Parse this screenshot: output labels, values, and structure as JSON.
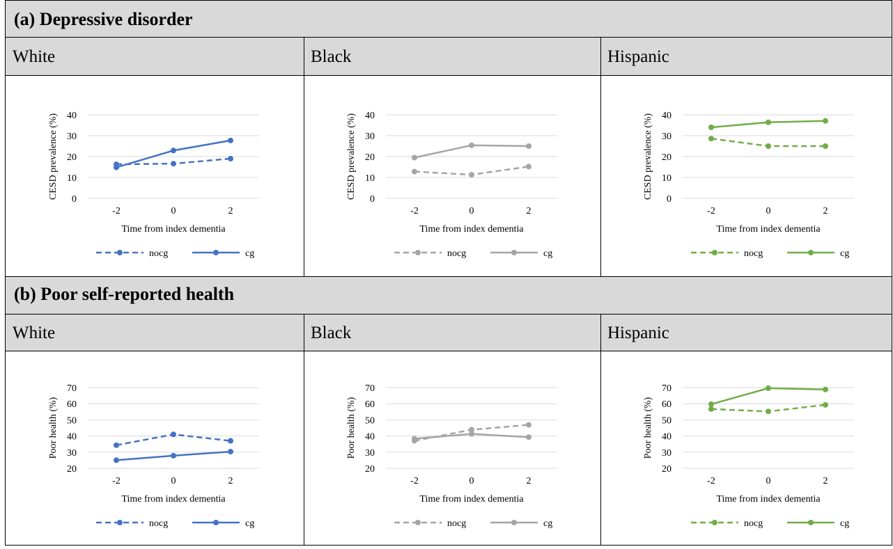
{
  "colors": {
    "White": "#4472c4",
    "Black": "#a5a5a5",
    "Hispanic": "#70ad47"
  },
  "sections": [
    {
      "title": "(a) Depressive disorder",
      "groups": [
        "White",
        "Black",
        "Hispanic"
      ]
    },
    {
      "title": "(b) Poor self-reported health",
      "groups": [
        "White",
        "Black",
        "Hispanic"
      ]
    }
  ],
  "chart_data": [
    {
      "type": "line",
      "section": "(a) Depressive disorder",
      "group": "White",
      "x": [
        -2,
        0,
        2
      ],
      "xlabel": "Time from index dementia",
      "ylabel": "CESD prevalence (%)",
      "ylim": [
        0,
        40
      ],
      "yticks": [
        0,
        10,
        20,
        30,
        40
      ],
      "xticks": [
        "-2",
        "0",
        "2"
      ],
      "grid": true,
      "legend": "bottom",
      "series": [
        {
          "name": "nocg",
          "style": "dashed",
          "values": [
            16.3,
            16.6,
            19.0
          ]
        },
        {
          "name": "cg",
          "style": "solid",
          "values": [
            14.8,
            22.9,
            27.7
          ]
        }
      ]
    },
    {
      "type": "line",
      "section": "(a) Depressive disorder",
      "group": "Black",
      "x": [
        -2,
        0,
        2
      ],
      "xlabel": "Time from index dementia",
      "ylabel": "CESD prevalence (%)",
      "ylim": [
        0,
        40
      ],
      "yticks": [
        0,
        10,
        20,
        30,
        40
      ],
      "xticks": [
        "-2",
        "0",
        "2"
      ],
      "grid": true,
      "legend": "bottom",
      "series": [
        {
          "name": "nocg",
          "style": "dashed",
          "values": [
            12.8,
            11.3,
            15.2
          ]
        },
        {
          "name": "cg",
          "style": "solid",
          "values": [
            19.5,
            25.4,
            25.0
          ]
        }
      ]
    },
    {
      "type": "line",
      "section": "(a) Depressive disorder",
      "group": "Hispanic",
      "x": [
        -2,
        0,
        2
      ],
      "xlabel": "Time from index dementia",
      "ylabel": "CESD prevalence (%)",
      "ylim": [
        0,
        40
      ],
      "yticks": [
        0,
        10,
        20,
        30,
        40
      ],
      "xticks": [
        "-2",
        "0",
        "2"
      ],
      "grid": true,
      "legend": "bottom",
      "series": [
        {
          "name": "nocg",
          "style": "dashed",
          "values": [
            28.6,
            25.0,
            25.0
          ]
        },
        {
          "name": "cg",
          "style": "solid",
          "values": [
            34.0,
            36.4,
            37.1
          ]
        }
      ]
    },
    {
      "type": "line",
      "section": "(b) Poor self-reported health",
      "group": "White",
      "x": [
        -2,
        0,
        2
      ],
      "xlabel": "Time from index dementia",
      "ylabel": "Poor health (%)",
      "ylim": [
        20,
        70
      ],
      "yticks": [
        20,
        30,
        40,
        50,
        60,
        70
      ],
      "xticks": [
        "-2",
        "0",
        "2"
      ],
      "grid": true,
      "legend": "bottom",
      "series": [
        {
          "name": "nocg",
          "style": "dashed",
          "values": [
            34.3,
            41.0,
            37.0
          ]
        },
        {
          "name": "cg",
          "style": "solid",
          "values": [
            25.0,
            27.8,
            30.3
          ]
        }
      ]
    },
    {
      "type": "line",
      "section": "(b) Poor self-reported health",
      "group": "Black",
      "x": [
        -2,
        0,
        2
      ],
      "xlabel": "Time from index dementia",
      "ylabel": "Poor health (%)",
      "ylim": [
        20,
        70
      ],
      "yticks": [
        20,
        30,
        40,
        50,
        60,
        70
      ],
      "xticks": [
        "-2",
        "0",
        "2"
      ],
      "grid": true,
      "legend": "bottom",
      "series": [
        {
          "name": "nocg",
          "style": "dashed",
          "values": [
            37.0,
            43.9,
            46.9
          ]
        },
        {
          "name": "cg",
          "style": "solid",
          "values": [
            38.3,
            41.3,
            39.3
          ]
        }
      ]
    },
    {
      "type": "line",
      "section": "(b) Poor self-reported health",
      "group": "Hispanic",
      "x": [
        -2,
        0,
        2
      ],
      "xlabel": "Time from index dementia",
      "ylabel": "Poor health (%)",
      "ylim": [
        20,
        70
      ],
      "yticks": [
        20,
        30,
        40,
        50,
        60,
        70
      ],
      "xticks": [
        "-2",
        "0",
        "2"
      ],
      "grid": true,
      "legend": "bottom",
      "series": [
        {
          "name": "nocg",
          "style": "dashed",
          "values": [
            56.7,
            55.2,
            59.3
          ]
        },
        {
          "name": "cg",
          "style": "solid",
          "values": [
            59.7,
            69.6,
            68.8
          ]
        }
      ]
    }
  ]
}
